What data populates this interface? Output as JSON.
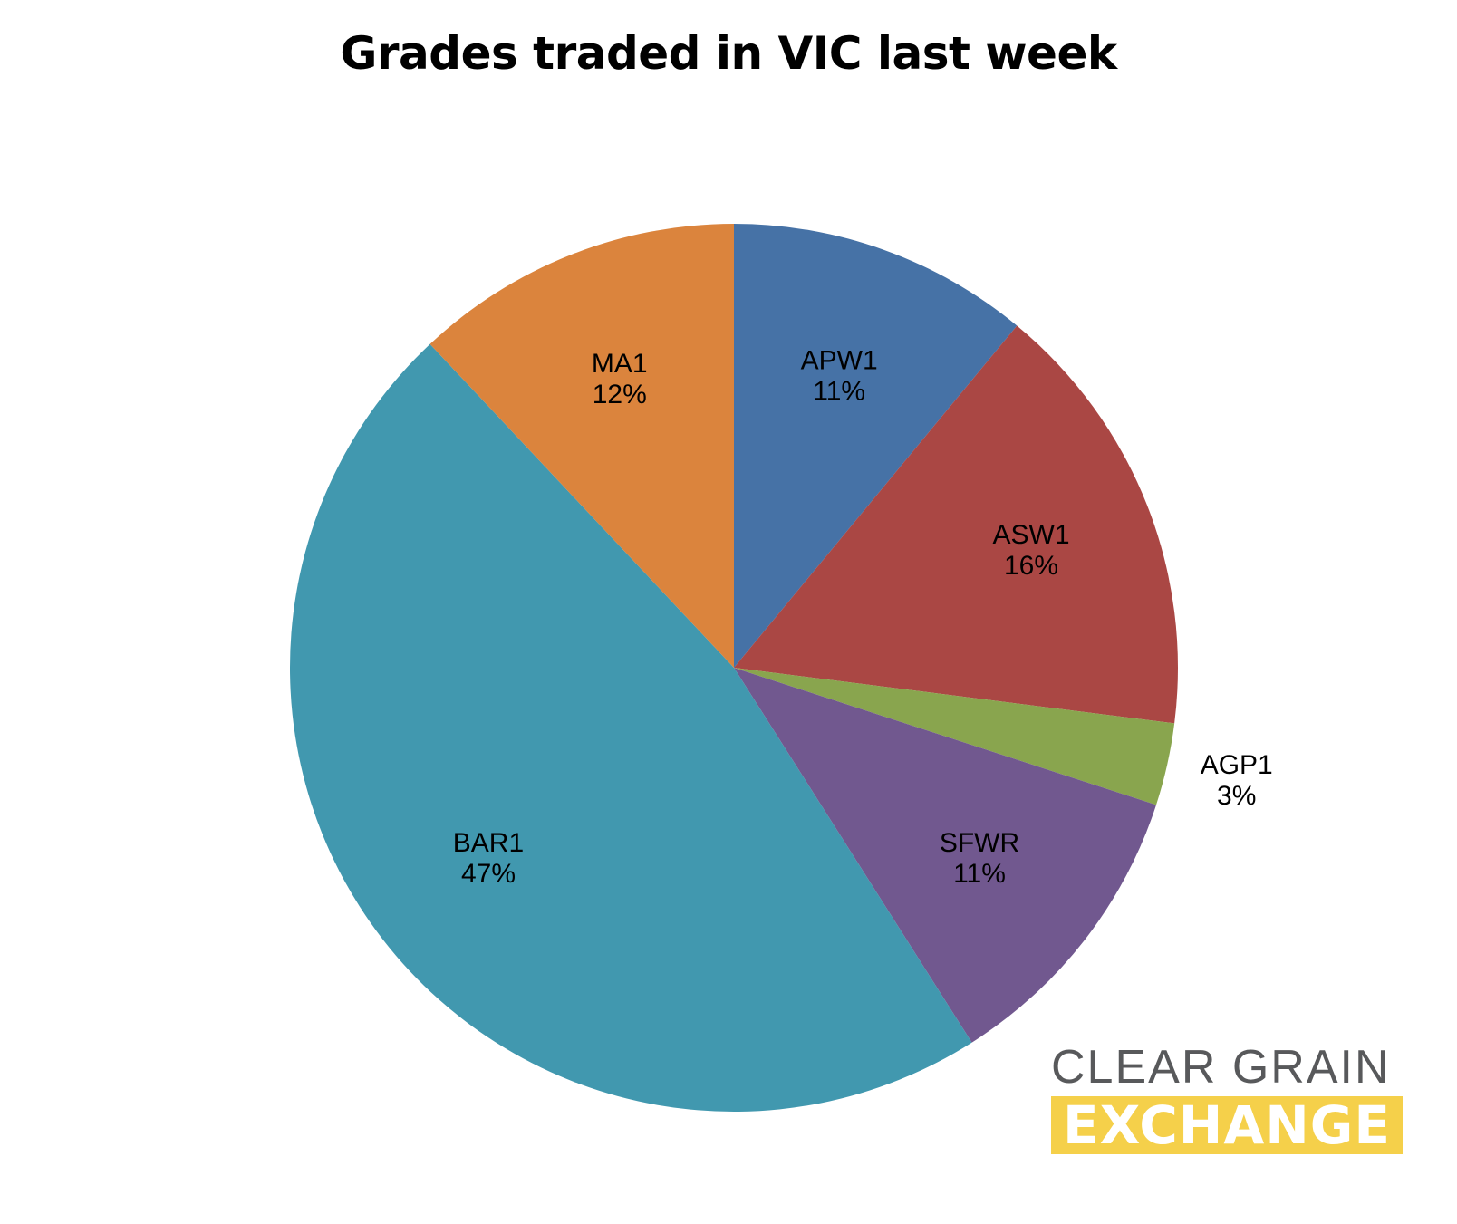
{
  "chart_data": {
    "type": "pie",
    "title": "Grades traded in VIC last week",
    "start_angle_deg": 0,
    "direction": "clockwise",
    "slices": [
      {
        "label": "APW1",
        "value": 11,
        "value_label": "11%",
        "color": "#4672a6"
      },
      {
        "label": "ASW1",
        "value": 16,
        "value_label": "16%",
        "color": "#aa4744"
      },
      {
        "label": "AGP1",
        "value": 3,
        "value_label": "3%",
        "color": "#89a54e"
      },
      {
        "label": "SFWR",
        "value": 11,
        "value_label": "11%",
        "color": "#71588f"
      },
      {
        "label": "BAR1",
        "value": 47,
        "value_label": "47%",
        "color": "#4198af"
      },
      {
        "label": "MA1",
        "value": 12,
        "value_label": "12%",
        "color": "#db843d"
      }
    ]
  },
  "logo": {
    "line1": "CLEAR GRAIN",
    "line2": "EXCHANGE",
    "line1_color": "#58595b",
    "line2_background": "#f5d04a"
  }
}
